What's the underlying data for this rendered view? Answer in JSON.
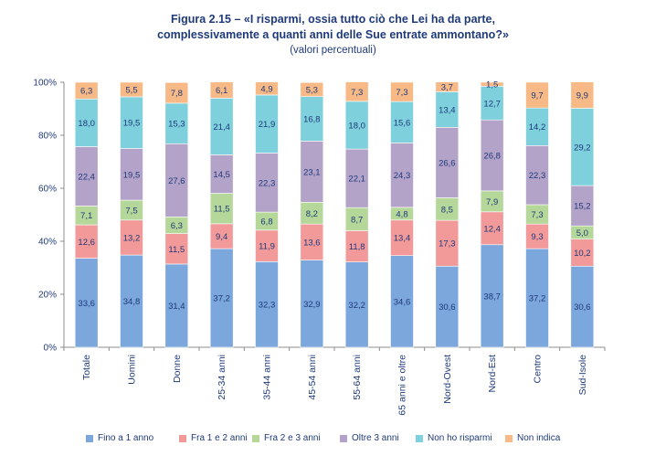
{
  "header": {
    "title_line1": "Figura 2.15 – «I risparmi, ossia tutto ciò che Lei ha da parte,",
    "title_line2": "complessivamente a quanti anni delle Sue entrate ammontano?»",
    "subtitle": "(valori percentuali)"
  },
  "chart_data": {
    "type": "bar",
    "stacked": true,
    "ylim": [
      0,
      100
    ],
    "yticks": [
      "0%",
      "20%",
      "40%",
      "60%",
      "80%",
      "100%"
    ],
    "grid": false,
    "legend_position": "bottom",
    "categories": [
      "Totale",
      "Uomini",
      "Donne",
      "25-34 anni",
      "35-44 anni",
      "45-54 anni",
      "55-64 anni",
      "65 anni e oltre",
      "Nord-Ovest",
      "Nord-Est",
      "Centro",
      "Sud-Isole"
    ],
    "series": [
      {
        "name": "Fino a 1 anno",
        "color": "#7ba7dc",
        "values": [
          33.6,
          34.8,
          31.4,
          37.2,
          32.3,
          32.9,
          32.2,
          34.6,
          30.6,
          38.7,
          37.2,
          30.6
        ],
        "labels": [
          "33,6",
          "34,8",
          "31,4",
          "37,2",
          "32,3",
          "32,9",
          "32,2",
          "34,6",
          "30,6",
          "38,7",
          "37,2",
          "30,6"
        ]
      },
      {
        "name": "Fra 1 e 2 anni",
        "color": "#f2999a",
        "values": [
          12.6,
          13.2,
          11.5,
          9.4,
          11.9,
          13.6,
          11.8,
          13.4,
          17.3,
          12.4,
          9.3,
          10.2
        ],
        "labels": [
          "12,6",
          "13,2",
          "11,5",
          "9,4",
          "11,9",
          "13,6",
          "11,8",
          "13,4",
          "17,3",
          "12,4",
          "9,3",
          "10,2"
        ]
      },
      {
        "name": "Fra 2 e 3 anni",
        "color": "#b5d89a",
        "values": [
          7.1,
          7.5,
          6.3,
          11.5,
          6.8,
          8.2,
          8.7,
          4.8,
          8.5,
          7.9,
          7.3,
          5.0
        ],
        "labels": [
          "7,1",
          "7,5",
          "6,3",
          "11,5",
          "6,8",
          "8,2",
          "8,7",
          "4,8",
          "8,5",
          "7,9",
          "7,3",
          "5,0"
        ]
      },
      {
        "name": "Oltre 3 anni",
        "color": "#b4a3c9",
        "values": [
          22.4,
          19.5,
          27.6,
          14.5,
          22.3,
          23.1,
          22.1,
          24.3,
          26.6,
          26.8,
          22.3,
          15.2
        ],
        "labels": [
          "22,4",
          "19,5",
          "27,6",
          "14,5",
          "22,3",
          "23,1",
          "22,1",
          "24,3",
          "26,6",
          "26,8",
          "22,3",
          "15,2"
        ]
      },
      {
        "name": "Non ho risparmi",
        "color": "#7fd0dd",
        "values": [
          18.0,
          19.5,
          15.3,
          21.4,
          21.9,
          16.8,
          18.0,
          15.6,
          13.4,
          12.7,
          14.2,
          29.2
        ],
        "labels": [
          "18,0",
          "19,5",
          "15,3",
          "21,4",
          "21,9",
          "16,8",
          "18,0",
          "15,6",
          "13,4",
          "12,7",
          "14,2",
          "29,2"
        ]
      },
      {
        "name": "Non indica",
        "color": "#f7b985",
        "values": [
          6.3,
          5.5,
          7.8,
          6.1,
          4.9,
          5.3,
          7.3,
          7.3,
          3.7,
          1.5,
          9.7,
          9.9
        ],
        "labels": [
          "6,3",
          "5,5",
          "7,8",
          "6,1",
          "4,9",
          "5,3",
          "7,3",
          "7,3",
          "3,7",
          "1,5",
          "9,7",
          "9,9"
        ]
      }
    ]
  }
}
